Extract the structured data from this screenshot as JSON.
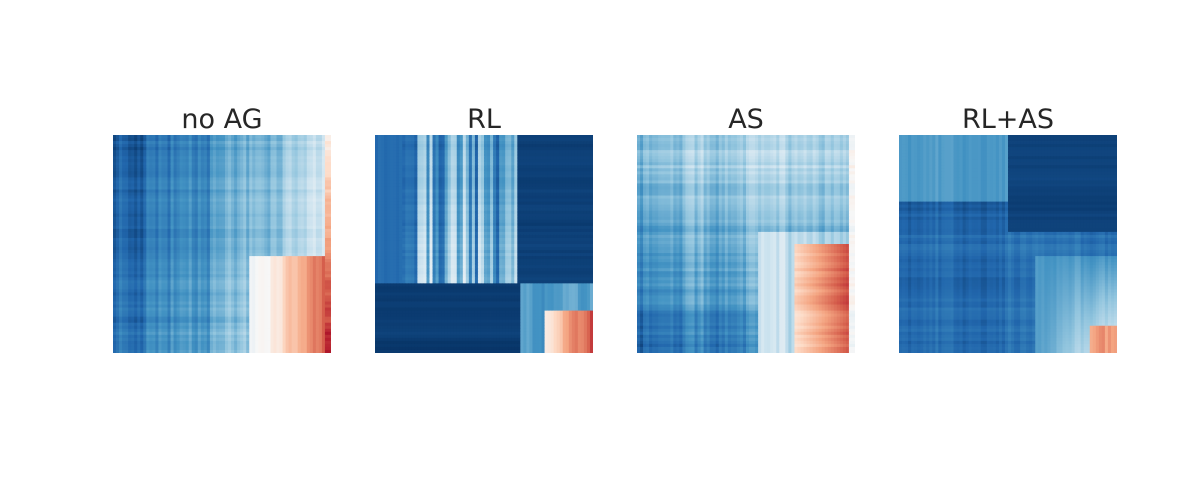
{
  "chart_data": {
    "type": "heatmap",
    "colormap": [
      "#053061",
      "#2166ac",
      "#4393c3",
      "#92c5de",
      "#d1e5f0",
      "#f7f7f7",
      "#fddbc7",
      "#f4a582",
      "#d6604d",
      "#b2182b",
      "#67001f"
    ],
    "axes_visible": false,
    "panels": [
      {
        "title": "no AG",
        "pattern": "noag"
      },
      {
        "title": "RL",
        "pattern": "rl"
      },
      {
        "title": "AS",
        "pattern": "as"
      },
      {
        "title": "RL+AS",
        "pattern": "rlas"
      }
    ]
  }
}
